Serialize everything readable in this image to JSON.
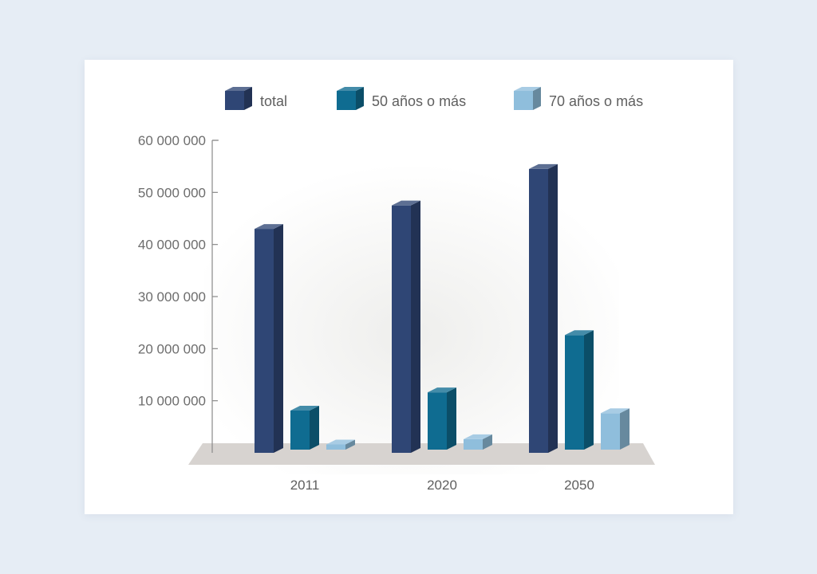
{
  "chart_data": {
    "type": "bar",
    "categories": [
      "2011",
      "2020",
      "2050"
    ],
    "series": [
      {
        "name": "total",
        "values": [
          43000000,
          47500000,
          54500000
        ],
        "color": "#2f4675"
      },
      {
        "name": "50 años o más",
        "values": [
          7500000,
          11000000,
          22000000
        ],
        "color": "#0f6c91"
      },
      {
        "name": "70 años o más",
        "values": [
          1000000,
          2000000,
          7000000
        ],
        "color": "#8fbedc"
      }
    ],
    "y_ticks": [
      10000000,
      20000000,
      30000000,
      40000000,
      50000000,
      60000000
    ],
    "y_tick_labels": [
      "10 000 000",
      "20 000 000",
      "30 000 000",
      "40 000 000",
      "50 000 000",
      "60 000 000"
    ],
    "ylim": [
      0,
      60000000
    ],
    "title": "",
    "xlabel": "",
    "ylabel": "",
    "grid": false,
    "legend_position": "top",
    "style": "3d-bars"
  }
}
